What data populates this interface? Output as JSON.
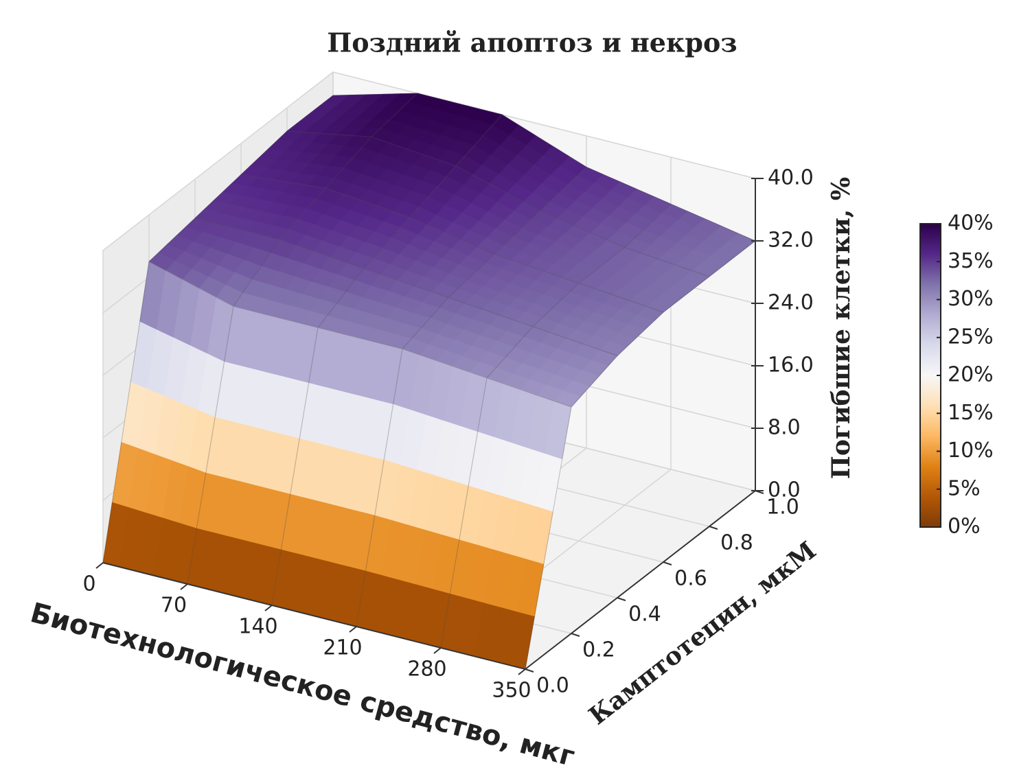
{
  "chart_data": {
    "type": "surface3d",
    "title": "Поздний апоптоз и некроз",
    "xlabel": "Биотехнологическое средство, мкг",
    "ylabel": "Камптотецин, мкМ",
    "zlabel": "Погибшие клетки, %",
    "x": [
      0,
      70,
      140,
      210,
      280,
      350
    ],
    "y": [
      0,
      0.2,
      0.4,
      0.6,
      0.8,
      1.0
    ],
    "z": [
      [
        0,
        0,
        0,
        0,
        0,
        0
      ],
      [
        34,
        31,
        31,
        31,
        30,
        29
      ],
      [
        35,
        35,
        34,
        33,
        32,
        31
      ],
      [
        36,
        37,
        36,
        34,
        33,
        32
      ],
      [
        37,
        39,
        38,
        35,
        33,
        32
      ],
      [
        37,
        40,
        40,
        36,
        34,
        32
      ]
    ],
    "xlim": [
      0,
      350
    ],
    "ylim": [
      0,
      1
    ],
    "zlim": [
      0,
      40
    ],
    "xticks": [
      0,
      70,
      140,
      210,
      280,
      350
    ],
    "yticks": [
      {
        "value": 0,
        "label": "0.0"
      },
      0.2,
      0.4,
      0.6,
      0.8,
      {
        "value": 1,
        "label": "1.0"
      }
    ],
    "zticks": [
      {
        "value": 0,
        "label": "0.0"
      },
      {
        "value": 8,
        "label": "8.0"
      },
      {
        "value": 16,
        "label": "16.0"
      },
      {
        "value": 24,
        "label": "24.0"
      },
      {
        "value": 32,
        "label": "32.0"
      },
      {
        "value": 40,
        "label": "40.0"
      }
    ],
    "colormap": [
      "#7f3b08",
      "#b35806",
      "#e08214",
      "#fdb863",
      "#fee0b6",
      "#f7f7f7",
      "#d8daeb",
      "#b2abd2",
      "#8073ac",
      "#542788",
      "#2d004b"
    ],
    "colorbar_lim": [
      0,
      40
    ],
    "colorbar_ticks": [
      {
        "value": 0,
        "label": "0%"
      },
      {
        "value": 5,
        "label": "5%"
      },
      {
        "value": 10,
        "label": "10%"
      },
      {
        "value": 15,
        "label": "15%"
      },
      {
        "value": 20,
        "label": "20%"
      },
      {
        "value": 25,
        "label": "25%"
      },
      {
        "value": 30,
        "label": "30%"
      },
      {
        "value": 35,
        "label": "35%"
      },
      {
        "value": 40,
        "label": "40%"
      }
    ],
    "grid": true
  }
}
